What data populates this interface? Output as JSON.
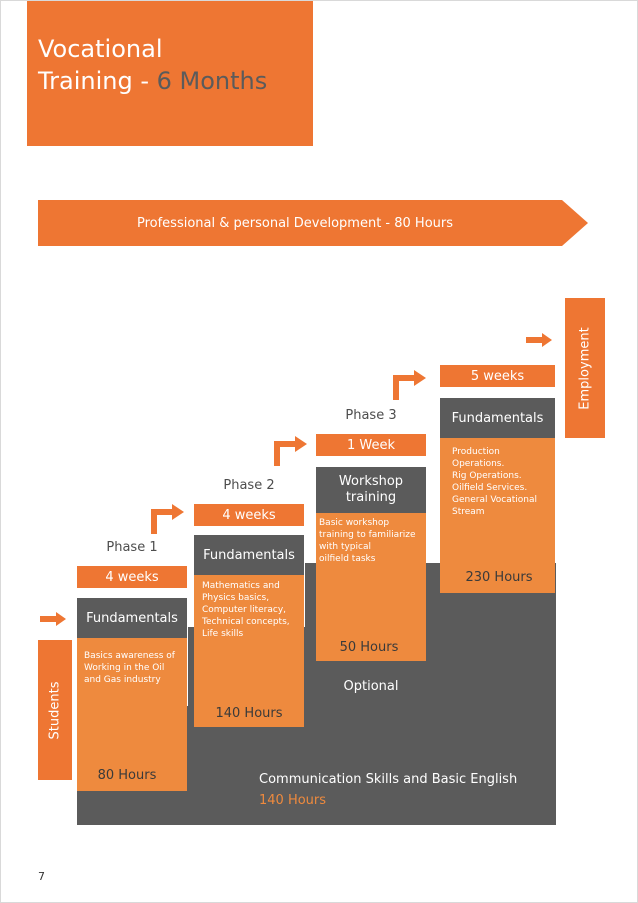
{
  "header": {
    "title_line1": "Vocational",
    "title_line2_prefix": "Training  - ",
    "title_line2_accent": "6 Months"
  },
  "banner": {
    "text": "Professional & personal Development - 80 Hours"
  },
  "side_labels": {
    "students": "Students",
    "employment": "Employment"
  },
  "steps": [
    {
      "phase": "Phase 1",
      "duration": "4 weeks",
      "heading": "Fundamentals",
      "description": [
        "Basics awareness of",
        "Working in the Oil",
        "and Gas industry"
      ],
      "hours": "80 Hours"
    },
    {
      "phase": "Phase 2",
      "duration": "4 weeks",
      "heading": "Fundamentals",
      "description": [
        "Mathematics and",
        "Physics basics,",
        "Computer literacy,",
        "Technical concepts,",
        "Life skills"
      ],
      "hours": "140 Hours"
    },
    {
      "phase": "Phase 3",
      "duration": "1 Week",
      "heading_lines": [
        "Workshop",
        "training"
      ],
      "description": [
        "Basic workshop",
        "training to familiarize",
        "with typical",
        "oilfield tasks"
      ],
      "hours": "50 Hours",
      "note": "Optional"
    },
    {
      "phase": "",
      "duration": "5 weeks",
      "heading": "Fundamentals",
      "description": [
        "Production",
        "Operations.",
        "Rig Operations.",
        "Oilfield Services.",
        "General Vocational",
        "Stream"
      ],
      "hours": "230 Hours"
    }
  ],
  "base": {
    "title": "Communication  Skills and Basic English",
    "hours": "140 Hours"
  },
  "page_number": "7",
  "colors": {
    "orange": "#ee7633",
    "orange_light": "#ee8a3e",
    "dark_grey": "#5b5b5b"
  }
}
